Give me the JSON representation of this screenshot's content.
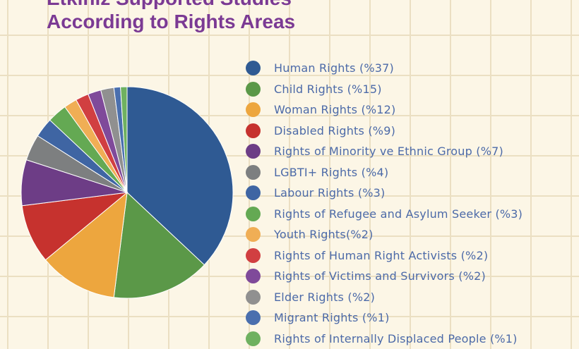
{
  "chart_data": {
    "type": "pie",
    "title_lines": [
      "Etkiniz Supported Studies",
      "According to Rights Areas"
    ],
    "slices": [
      {
        "label": "Human Rights (%37)",
        "value": 37,
        "color": "#2f5a93"
      },
      {
        "label": "Child Rights (%15)",
        "value": 15,
        "color": "#5b9848"
      },
      {
        "label": "Woman Rights (%12)",
        "value": 12,
        "color": "#eda63e"
      },
      {
        "label": "Disabled Rights (%9)",
        "value": 9,
        "color": "#c6322e"
      },
      {
        "label": "Rights of Minority ve Ethnic Group (%7)",
        "value": 7,
        "color": "#6d3d86"
      },
      {
        "label": "LGBTI+ Rights (%4)",
        "value": 4,
        "color": "#7d7f80"
      },
      {
        "label": "Labour Rights (%3)",
        "value": 3,
        "color": "#3f65a3"
      },
      {
        "label": "Rights of Refugee and Asylum Seeker (%3)",
        "value": 3,
        "color": "#64a953"
      },
      {
        "label": "Youth Rights(%2)",
        "value": 2,
        "color": "#f0ae55"
      },
      {
        "label": "Rights of Human Right Activists (%2)",
        "value": 2,
        "color": "#d13f41"
      },
      {
        "label": "Rights of Victims and Survivors (%2)",
        "value": 2,
        "color": "#7f4a9a"
      },
      {
        "label": "Elder Rights (%2)",
        "value": 2,
        "color": "#909090"
      },
      {
        "label": "Migrant Rights (%1)",
        "value": 1,
        "color": "#4a6fae"
      },
      {
        "label": "Rights of Internally Displaced People (%1)",
        "value": 1,
        "color": "#6fb160"
      }
    ]
  }
}
